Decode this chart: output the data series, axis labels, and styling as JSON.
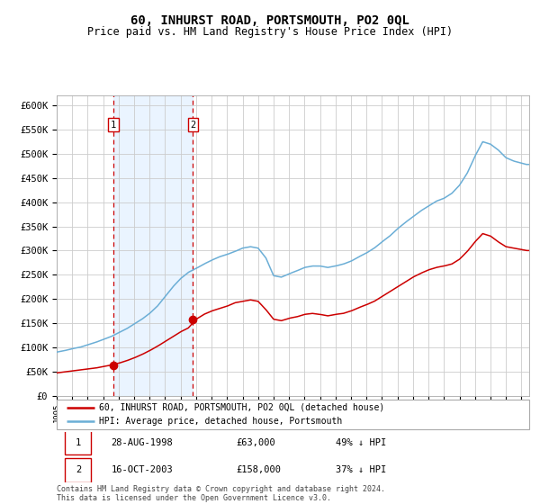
{
  "title": "60, INHURST ROAD, PORTSMOUTH, PO2 0QL",
  "subtitle": "Price paid vs. HM Land Registry's House Price Index (HPI)",
  "title_fontsize": 10,
  "subtitle_fontsize": 8.5,
  "ylabel_ticks": [
    "£0",
    "£50K",
    "£100K",
    "£150K",
    "£200K",
    "£250K",
    "£300K",
    "£350K",
    "£400K",
    "£450K",
    "£500K",
    "£550K",
    "£600K"
  ],
  "ylim": [
    0,
    620000
  ],
  "sale1_date": 1998.65,
  "sale1_price": 63000,
  "sale1_label": "1",
  "sale2_date": 2003.79,
  "sale2_price": 158000,
  "sale2_label": "2",
  "background_color": "#ffffff",
  "plot_bg_color": "#ffffff",
  "grid_color": "#cccccc",
  "hpi_line_color": "#6baed6",
  "price_line_color": "#cc0000",
  "sale_marker_color": "#cc0000",
  "shade_color": "#ddeeff",
  "dashed_line_color": "#cc0000",
  "legend_line1": "60, INHURST ROAD, PORTSMOUTH, PO2 0QL (detached house)",
  "legend_line2": "HPI: Average price, detached house, Portsmouth",
  "table_row1": [
    "1",
    "28-AUG-1998",
    "£63,000",
    "49% ↓ HPI"
  ],
  "table_row2": [
    "2",
    "16-OCT-2003",
    "£158,000",
    "37% ↓ HPI"
  ],
  "footnote": "Contains HM Land Registry data © Crown copyright and database right 2024.\nThis data is licensed under the Open Government Licence v3.0.",
  "xstart": 1995.0,
  "xend": 2025.5,
  "hpi_years": [
    1995,
    1995.5,
    1996,
    1996.5,
    1997,
    1997.5,
    1998,
    1998.5,
    1999,
    1999.5,
    2000,
    2000.5,
    2001,
    2001.5,
    2002,
    2002.5,
    2003,
    2003.5,
    2004,
    2004.5,
    2005,
    2005.5,
    2006,
    2006.5,
    2007,
    2007.5,
    2008,
    2008.5,
    2009,
    2009.5,
    2010,
    2010.5,
    2011,
    2011.5,
    2012,
    2012.5,
    2013,
    2013.5,
    2014,
    2014.5,
    2015,
    2015.5,
    2016,
    2016.5,
    2017,
    2017.5,
    2018,
    2018.5,
    2019,
    2019.5,
    2020,
    2020.5,
    2021,
    2021.5,
    2022,
    2022.5,
    2023,
    2023.5,
    2024,
    2024.5,
    2025.3
  ],
  "hpi_vals": [
    90000,
    93000,
    97000,
    100000,
    105000,
    110000,
    116000,
    122000,
    130000,
    138000,
    148000,
    158000,
    170000,
    185000,
    205000,
    225000,
    242000,
    255000,
    263000,
    272000,
    280000,
    287000,
    292000,
    298000,
    305000,
    308000,
    305000,
    285000,
    248000,
    245000,
    252000,
    258000,
    265000,
    268000,
    268000,
    265000,
    268000,
    272000,
    278000,
    287000,
    295000,
    305000,
    318000,
    330000,
    345000,
    358000,
    370000,
    382000,
    392000,
    402000,
    408000,
    418000,
    435000,
    460000,
    495000,
    525000,
    520000,
    508000,
    492000,
    485000,
    478000
  ],
  "price_years": [
    1995,
    1995.5,
    1996,
    1996.5,
    1997,
    1997.5,
    1998,
    1998.5,
    1999,
    1999.5,
    2000,
    2000.5,
    2001,
    2001.5,
    2002,
    2002.5,
    2003,
    2003.5,
    2004,
    2004.5,
    2005,
    2005.5,
    2006,
    2006.5,
    2007,
    2007.5,
    2008,
    2008.5,
    2009,
    2009.5,
    2010,
    2010.5,
    2011,
    2011.5,
    2012,
    2012.5,
    2013,
    2013.5,
    2014,
    2014.5,
    2015,
    2015.5,
    2016,
    2016.5,
    2017,
    2017.5,
    2018,
    2018.5,
    2019,
    2019.5,
    2020,
    2020.5,
    2021,
    2021.5,
    2022,
    2022.5,
    2023,
    2023.5,
    2024,
    2024.5,
    2025.3
  ],
  "price_vals": [
    47000,
    49000,
    51000,
    53000,
    55000,
    57000,
    60000,
    63000,
    67000,
    72000,
    78000,
    85000,
    93000,
    102000,
    112000,
    122000,
    132000,
    140000,
    158000,
    168000,
    175000,
    180000,
    185000,
    192000,
    195000,
    198000,
    195000,
    178000,
    158000,
    155000,
    160000,
    163000,
    168000,
    170000,
    168000,
    165000,
    168000,
    170000,
    175000,
    182000,
    188000,
    195000,
    205000,
    215000,
    225000,
    235000,
    245000,
    253000,
    260000,
    265000,
    268000,
    272000,
    282000,
    298000,
    318000,
    335000,
    330000,
    318000,
    308000,
    305000,
    300000
  ]
}
